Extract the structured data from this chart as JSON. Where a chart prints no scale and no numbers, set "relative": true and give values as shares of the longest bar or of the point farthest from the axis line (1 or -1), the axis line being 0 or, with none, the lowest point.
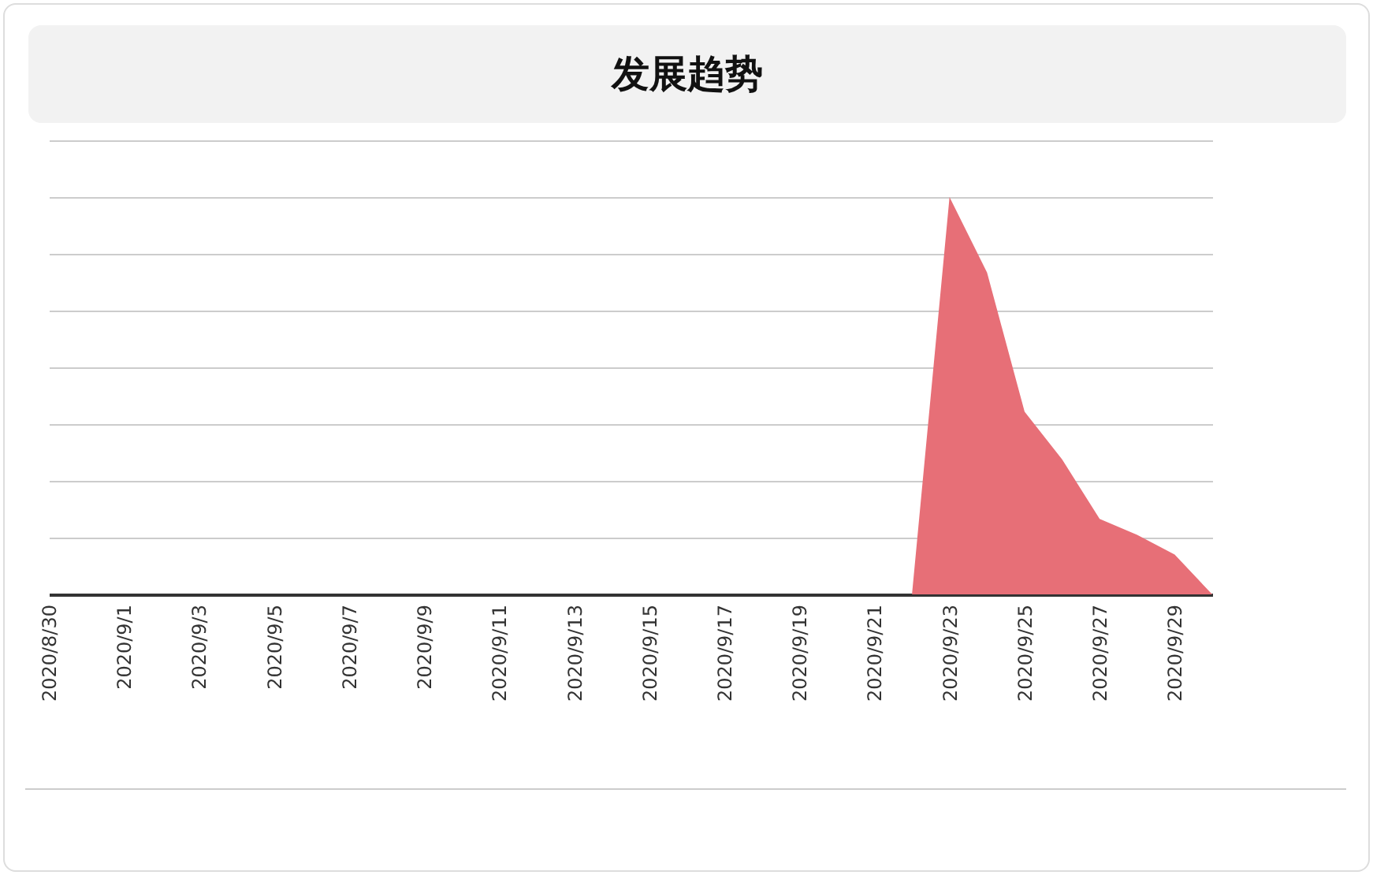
{
  "chart_data": {
    "type": "area",
    "title": "发展趋势",
    "relative": true,
    "grid": "y",
    "categories": [
      "2020/8/30",
      null,
      "2020/9/1",
      null,
      "2020/9/3",
      null,
      "2020/9/5",
      null,
      "2020/9/7",
      null,
      "2020/9/9",
      null,
      "2020/9/11",
      null,
      "2020/9/13",
      null,
      "2020/9/15",
      null,
      "2020/9/17",
      null,
      "2020/9/19",
      null,
      "2020/9/21",
      null,
      "2020/9/23",
      null,
      "2020/9/25",
      null,
      "2020/9/27",
      null,
      "2020/9/29",
      null
    ],
    "series": [
      {
        "color": "#e76f77",
        "values": [
          0,
          0,
          0,
          0,
          0,
          0,
          0,
          0,
          0,
          0,
          0,
          0,
          0,
          0,
          0,
          0,
          0,
          0,
          0,
          0,
          0,
          0,
          0,
          0,
          1,
          0.81,
          0.46,
          0.34,
          0.19,
          0.15,
          0.1,
          0
        ]
      }
    ]
  }
}
